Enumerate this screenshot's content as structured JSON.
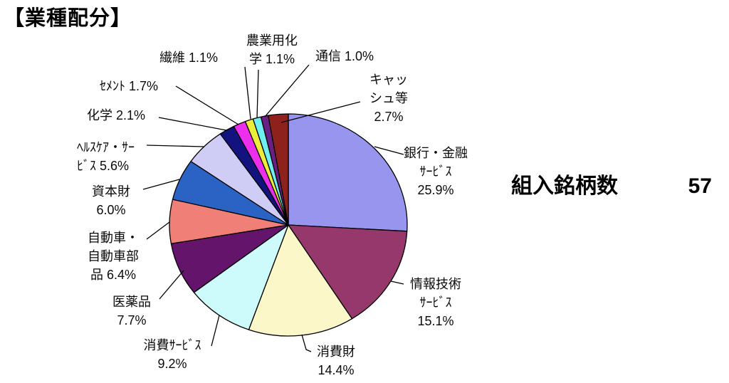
{
  "page_title": "【業種配分】",
  "holdings": {
    "label": "組入銘柄数",
    "value": "57"
  },
  "chart_data": {
    "type": "pie",
    "title": "業種配分",
    "direction": "clockwise",
    "start_angle_deg": 0,
    "total_percent": 100.0,
    "legend_position": "around-pie-callouts",
    "slices": [
      {
        "name": "銀行・金融サービス",
        "value": 25.9,
        "color": "#9895EE",
        "label_lines": [
          "銀行・金融",
          "ｻｰﾋﾞｽ",
          "25.9%"
        ]
      },
      {
        "name": "情報技術サービス",
        "value": 15.1,
        "color": "#96386B",
        "label_lines": [
          "情報技術",
          "ｻｰﾋﾞｽ",
          "15.1%"
        ]
      },
      {
        "name": "消費財",
        "value": 14.4,
        "color": "#FBF7C8",
        "label_lines": [
          "消費財",
          "14.4%"
        ]
      },
      {
        "name": "消費サービス",
        "value": 9.2,
        "color": "#CDFAFA",
        "label_lines": [
          "消費ｻｰﾋﾞｽ",
          "9.2%"
        ]
      },
      {
        "name": "医薬品",
        "value": 7.7,
        "color": "#64156B",
        "label_lines": [
          "医薬品",
          "7.7%"
        ]
      },
      {
        "name": "自動車・自動車部品",
        "value": 6.4,
        "color": "#F08077",
        "label_lines": [
          "自動車・",
          "自動車部",
          "品 6.4%"
        ]
      },
      {
        "name": "資本財",
        "value": 6.0,
        "color": "#2B63C5",
        "label_lines": [
          "資本財",
          "6.0%"
        ]
      },
      {
        "name": "ヘルスケア・サービス",
        "value": 5.6,
        "color": "#CFCDF6",
        "label_lines": [
          "ﾍﾙｽｹｱ・ｻｰ",
          "ﾋﾞｽ 5.6%"
        ]
      },
      {
        "name": "化学",
        "value": 2.1,
        "color": "#131380",
        "label_lines": [
          "化学 2.1%"
        ]
      },
      {
        "name": "セメント",
        "value": 1.7,
        "color": "#EC2FEC",
        "label_lines": [
          "ｾﾒﾝﾄ 1.7%"
        ]
      },
      {
        "name": "繊維",
        "value": 1.1,
        "color": "#ECEC3A",
        "label_lines": [
          "繊維 1.1%"
        ]
      },
      {
        "name": "農業用化学",
        "value": 1.1,
        "color": "#6FEFEF",
        "label_lines": [
          "農業用化",
          "学 1.1%"
        ]
      },
      {
        "name": "通信",
        "value": 1.0,
        "color": "#682084",
        "label_lines": [
          "通信 1.0%"
        ]
      },
      {
        "name": "キャッシュ等",
        "value": 2.7,
        "color": "#8E211C",
        "label_lines": [
          "キャッ",
          "シュ等",
          "2.7%"
        ]
      }
    ]
  }
}
